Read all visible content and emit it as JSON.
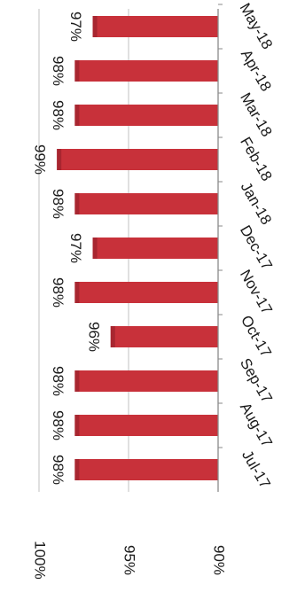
{
  "chart_data": {
    "type": "bar",
    "orientation": "horizontal",
    "categories": [
      "Jul-17",
      "Aug-17",
      "Sep-17",
      "Oct-17",
      "Nov-17",
      "Dec-17",
      "Jan-18",
      "Feb-18",
      "Mar-18",
      "Apr-18",
      "May-18"
    ],
    "values": [
      98,
      98,
      98,
      96,
      98,
      97,
      98,
      99,
      98,
      98,
      97
    ],
    "value_labels": [
      "98%",
      "98%",
      "98%",
      "96%",
      "98%",
      "97%",
      "98%",
      "99%",
      "98%",
      "98%",
      "97%"
    ],
    "axis_ticks": [
      90,
      95,
      100
    ],
    "axis_tick_labels": [
      "90%",
      "95%",
      "100%"
    ],
    "xlim": [
      90,
      100
    ],
    "grid": true,
    "colors": {
      "bar": "#c8313a",
      "bar_shade": "#a82630",
      "grid": "#c0c0c0",
      "axis": "#8a8a8a"
    }
  }
}
